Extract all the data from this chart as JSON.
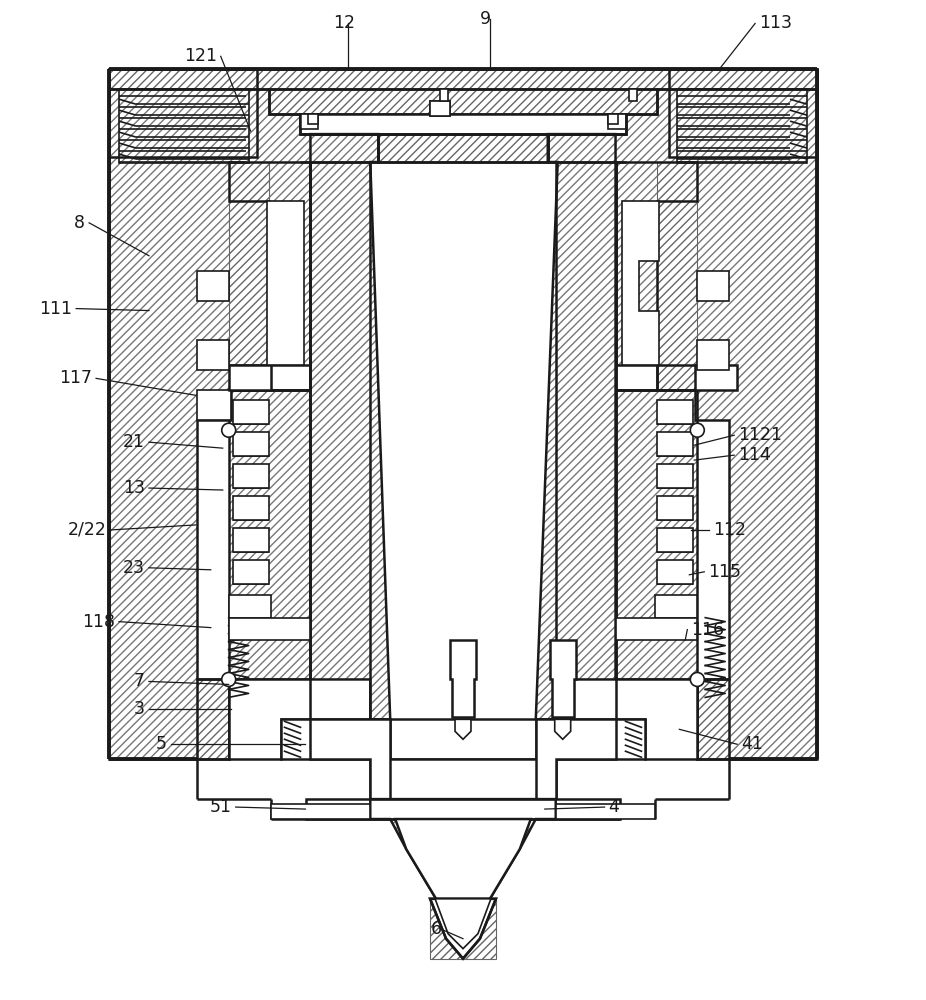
{
  "background_color": "#ffffff",
  "line_color": "#1a1a1a",
  "figsize": [
    9.26,
    10.0
  ],
  "dpi": 100,
  "labels_data": [
    [
      220,
      55,
      250,
      130,
      "121",
      "right"
    ],
    [
      348,
      22,
      348,
      68,
      "12",
      "center"
    ],
    [
      490,
      18,
      490,
      68,
      "9",
      "center"
    ],
    [
      756,
      22,
      720,
      68,
      "113",
      "left"
    ],
    [
      88,
      222,
      148,
      255,
      "8",
      "right"
    ],
    [
      75,
      308,
      148,
      310,
      "111",
      "right"
    ],
    [
      95,
      378,
      195,
      395,
      "117",
      "right"
    ],
    [
      148,
      442,
      222,
      448,
      "21",
      "right"
    ],
    [
      148,
      488,
      222,
      490,
      "13",
      "right"
    ],
    [
      110,
      530,
      195,
      525,
      "2/22",
      "right"
    ],
    [
      148,
      568,
      210,
      570,
      "23",
      "right"
    ],
    [
      118,
      622,
      210,
      628,
      "118",
      "right"
    ],
    [
      148,
      682,
      228,
      685,
      "7",
      "right"
    ],
    [
      148,
      710,
      230,
      710,
      "3",
      "right"
    ],
    [
      170,
      745,
      305,
      745,
      "5",
      "right"
    ],
    [
      235,
      808,
      305,
      810,
      "51",
      "right"
    ],
    [
      440,
      930,
      463,
      940,
      "6",
      "center"
    ],
    [
      605,
      808,
      545,
      810,
      "4",
      "left"
    ],
    [
      738,
      745,
      680,
      730,
      "41",
      "left"
    ],
    [
      688,
      630,
      686,
      640,
      "116",
      "left"
    ],
    [
      705,
      572,
      690,
      575,
      "115",
      "left"
    ],
    [
      710,
      530,
      692,
      530,
      "112",
      "left"
    ],
    [
      735,
      455,
      695,
      460,
      "114",
      "left"
    ],
    [
      735,
      435,
      695,
      445,
      "1121",
      "left"
    ]
  ]
}
